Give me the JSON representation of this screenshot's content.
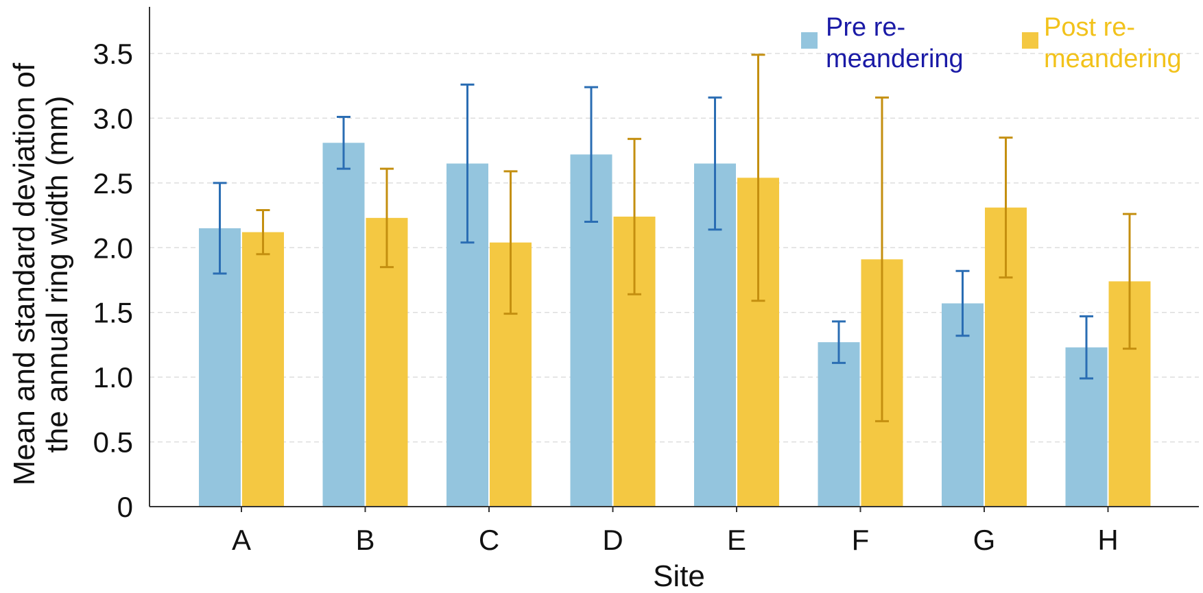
{
  "chart_data": {
    "type": "bar",
    "title": "",
    "xlabel": "Site",
    "ylabel_lines": [
      "Mean and standard deviation of",
      "the annual ring width (mm)"
    ],
    "categories": [
      "A",
      "B",
      "C",
      "D",
      "E",
      "F",
      "G",
      "H"
    ],
    "ylim": [
      0,
      3.8
    ],
    "yticks": [
      0,
      0.5,
      1.0,
      1.5,
      2.0,
      2.5,
      3.0,
      3.5
    ],
    "ytick_labels": [
      "0",
      "0.5",
      "1.0",
      "1.5",
      "2.0",
      "2.5",
      "3.0",
      "3.5"
    ],
    "grid": "horizontal dashed",
    "legend_position": "top-right",
    "series": [
      {
        "name_lines": [
          "Pre re-",
          "meandering"
        ],
        "color": "#94c5de",
        "error_color": "#2a6db3",
        "text_color": "#1a1aa6",
        "values": [
          2.15,
          2.81,
          2.65,
          2.72,
          2.65,
          1.27,
          1.57,
          1.23
        ],
        "sd": [
          0.35,
          0.2,
          0.61,
          0.52,
          0.51,
          0.16,
          0.25,
          0.24
        ]
      },
      {
        "name_lines": [
          "Post re-",
          "meandering"
        ],
        "color": "#f4c842",
        "error_color": "#c48f10",
        "text_color": "#f2c21b",
        "values": [
          2.12,
          2.23,
          2.04,
          2.24,
          2.54,
          1.91,
          2.31,
          1.74
        ],
        "sd": [
          0.17,
          0.38,
          0.55,
          0.6,
          0.95,
          1.25,
          0.54,
          0.52
        ]
      }
    ]
  }
}
